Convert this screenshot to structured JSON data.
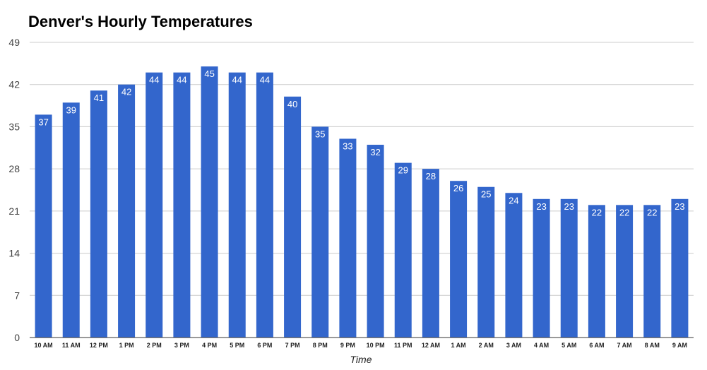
{
  "chart_data": {
    "type": "bar",
    "title": "Denver's Hourly Temperatures",
    "xlabel": "Time",
    "ylabel": "",
    "ylim": [
      0,
      49
    ],
    "yticks": [
      0,
      7,
      14,
      21,
      28,
      35,
      42,
      49
    ],
    "grid": true,
    "legend": "none",
    "bar_color": "#3366cc",
    "categories": [
      "10 AM",
      "11 AM",
      "12 PM",
      "1 PM",
      "2 PM",
      "3 PM",
      "4 PM",
      "5 PM",
      "6 PM",
      "7 PM",
      "8 PM",
      "9 PM",
      "10 PM",
      "11 PM",
      "12 AM",
      "1 AM",
      "2 AM",
      "3 AM",
      "4 AM",
      "5 AM",
      "6 AM",
      "7 AM",
      "8 AM",
      "9 AM"
    ],
    "values": [
      37,
      39,
      41,
      42,
      44,
      44,
      45,
      44,
      44,
      40,
      35,
      33,
      32,
      29,
      28,
      26,
      25,
      24,
      23,
      23,
      22,
      22,
      22,
      23
    ]
  }
}
